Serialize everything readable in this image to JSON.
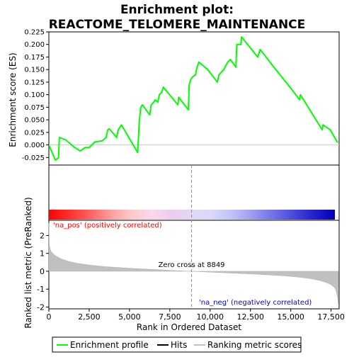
{
  "chart_data": {
    "type": "line",
    "title_line1": "Enrichment plot:",
    "title_line2": "REACTOME_TELOMERE_MAINTENANCE",
    "es_panel": {
      "ylabel": "Enrichment score (ES)",
      "ylim": [
        -0.04,
        0.225
      ],
      "yticks": [
        -0.025,
        0.0,
        0.025,
        0.05,
        0.075,
        0.1,
        0.125,
        0.15,
        0.175,
        0.2,
        0.225
      ],
      "ytick_labels": [
        "-0.025",
        "0.000",
        "0.025",
        "0.050",
        "0.075",
        "0.100",
        "0.125",
        "0.150",
        "0.175",
        "0.200",
        "0.225"
      ],
      "series_color": "#00ff00",
      "profile_x": [
        0,
        400,
        600,
        650,
        1050,
        1600,
        1950,
        2250,
        2500,
        2850,
        3300,
        3550,
        3650,
        3750,
        4200,
        4300,
        4500,
        5500,
        5550,
        5600,
        5700,
        5800,
        6250,
        6350,
        6500,
        6600,
        6750,
        6850,
        7000,
        7100,
        8000,
        8050,
        8650,
        8700,
        8800,
        8900,
        9100,
        9150,
        9250,
        9300,
        9850,
        10450,
        10550,
        10700,
        10850,
        11000,
        11100,
        11250,
        11600,
        11650,
        11900,
        11950,
        12950,
        13100,
        13950,
        14950,
        15550,
        15600,
        16950,
        17000,
        17450,
        17900
      ],
      "profile_y": [
        0.0,
        -0.03,
        -0.025,
        0.015,
        0.01,
        -0.005,
        -0.012,
        -0.005,
        -0.005,
        0.006,
        0.008,
        0.015,
        0.03,
        0.032,
        0.015,
        0.03,
        0.04,
        -0.015,
        0.01,
        0.045,
        0.075,
        0.08,
        0.06,
        0.08,
        0.085,
        0.09,
        0.085,
        0.1,
        0.105,
        0.115,
        0.08,
        0.095,
        0.07,
        0.12,
        0.13,
        0.135,
        0.14,
        0.15,
        0.16,
        0.165,
        0.15,
        0.125,
        0.14,
        0.145,
        0.15,
        0.16,
        0.165,
        0.17,
        0.155,
        0.2,
        0.2,
        0.215,
        0.175,
        0.19,
        0.155,
        0.115,
        0.09,
        0.1,
        0.03,
        0.04,
        0.03,
        0.005
      ]
    },
    "hits_x": [
      560,
      600,
      650,
      1050,
      1600,
      1950,
      2250,
      2500,
      2850,
      3300,
      3550,
      3650,
      3750,
      4200,
      4300,
      4500,
      5500,
      5550,
      5600,
      5650,
      5700,
      5800,
      6250,
      6350,
      6500,
      6600,
      6750,
      6850,
      7000,
      7100,
      8000,
      8050,
      8650,
      8700,
      8750,
      8800,
      8850,
      9100,
      9150,
      9200,
      9250,
      9300,
      9850,
      10450,
      10550,
      10700,
      10850,
      11000,
      11100,
      11250,
      11600,
      11650,
      11900,
      11950,
      12950,
      13100,
      13950,
      14950,
      15550,
      15600,
      16950,
      17000,
      17450
    ],
    "rank_panel": {
      "ylabel": "Ranked list metric (PreRanked)",
      "xlabel": "Rank in Ordered Dataset",
      "xlim": [
        0,
        18000
      ],
      "ylim": [
        -2.1,
        2.85
      ],
      "xticks": [
        0,
        2500,
        5000,
        7500,
        10000,
        12500,
        15000,
        17500
      ],
      "xtick_labels": [
        "0",
        "2,500",
        "5,000",
        "7,500",
        "10,000",
        "12,500",
        "15,000",
        "17,500"
      ],
      "yticks": [
        -2,
        -1,
        0,
        1,
        2
      ],
      "ytick_labels": [
        "-2",
        "-1",
        "0",
        "1",
        "2"
      ],
      "metric_x": [
        0,
        30,
        80,
        150,
        300,
        500,
        800,
        1200,
        1800,
        2500,
        3500,
        5000,
        6500,
        8000,
        8849,
        10000,
        11500,
        13000,
        14500,
        15500,
        16300,
        16800,
        17200,
        17500,
        17700,
        17800,
        17870,
        17920,
        17950
      ],
      "metric_y": [
        2.7,
        1.5,
        1.25,
        1.1,
        0.95,
        0.82,
        0.68,
        0.56,
        0.44,
        0.35,
        0.26,
        0.17,
        0.1,
        0.03,
        0.0,
        -0.05,
        -0.11,
        -0.17,
        -0.25,
        -0.33,
        -0.42,
        -0.52,
        -0.63,
        -0.75,
        -0.9,
        -1.05,
        -1.3,
        -1.6,
        -1.85
      ],
      "zero_cross_label": "Zero cross at 8849",
      "zero_cross_x": 8849,
      "pos_label": "'na_pos' (positively correlated)",
      "neg_label": "'na_neg' (negatively correlated)",
      "pos_label_color": "#ff0000",
      "neg_label_color": "#0000cd"
    },
    "color_bar": {
      "colors": [
        "#ff0000",
        "#ff3030",
        "#ff6060",
        "#ff9a9a",
        "#ffc8c8",
        "#fcd8ec",
        "#eeccee",
        "#e2d8f4",
        "#d8d8f8",
        "#c0c0f8",
        "#9a9af2",
        "#7070e8",
        "#4848dc",
        "#2020cc",
        "#0000b8"
      ]
    },
    "legend": {
      "entries": [
        "Enrichment profile",
        "Hits",
        "Ranking metric scores"
      ],
      "colors": [
        "#00ff00",
        "#000000",
        "#c0c0c0"
      ]
    }
  }
}
